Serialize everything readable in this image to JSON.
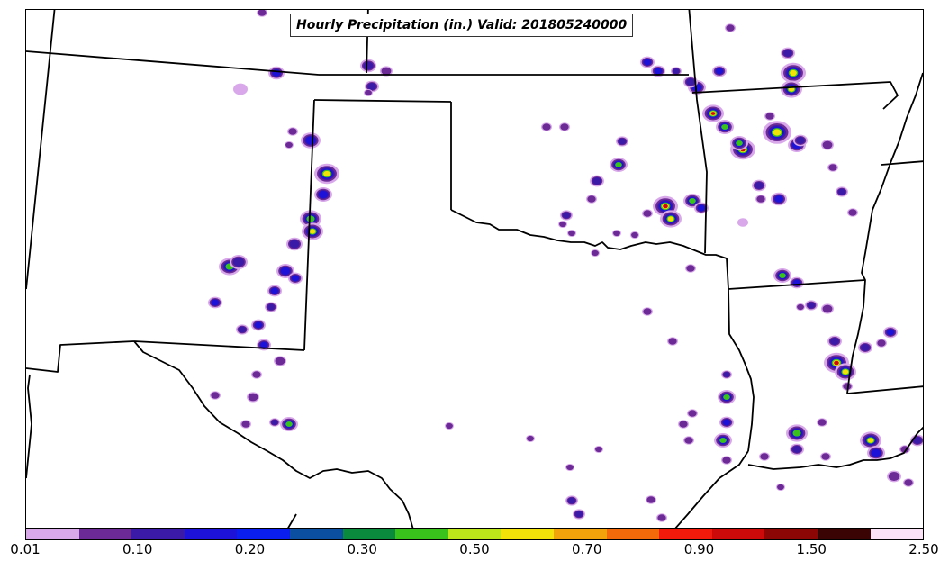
{
  "title": "Hourly Precipitation (in.) Valid: 201805240000",
  "colorbar": {
    "colors": [
      "#d8a8ea",
      "#6b2a95",
      "#3c1aa8",
      "#1d12d8",
      "#0b1ef0",
      "#0b4fa0",
      "#0a8a3c",
      "#39c21c",
      "#bde61a",
      "#f2e20a",
      "#f2a20a",
      "#f26a0a",
      "#f21a0a",
      "#cc0a0a",
      "#8c0606",
      "#3a0404",
      "#fbe2f6"
    ],
    "tick_labels": [
      "0.01",
      "0.10",
      "0.20",
      "0.30",
      "0.50",
      "0.70",
      "0.90",
      "1.50",
      "2.50"
    ]
  },
  "map": {
    "boundary_color": "#000000",
    "precip_palette": {
      "light": "#d8a8ea",
      "purple": "#6b2a95",
      "indigo": "#3c1aa8",
      "blue": "#1d12d8",
      "green": "#39c21c",
      "yellow": "#f2e20a",
      "red": "#cc0a0a",
      "darkred": "#8c0606",
      "white": "#ffffff"
    }
  }
}
